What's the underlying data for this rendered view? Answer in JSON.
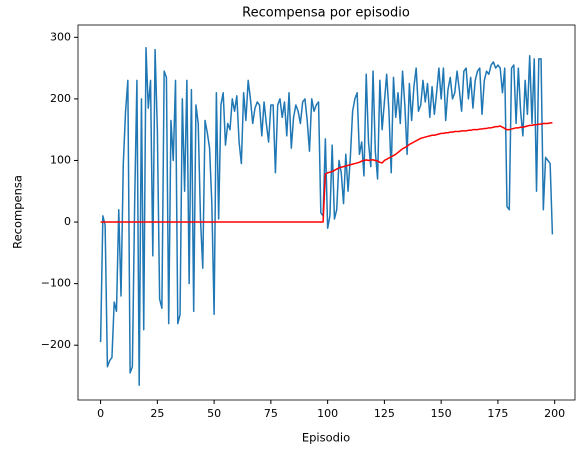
{
  "chart_data": {
    "type": "line",
    "title": "Recompensa por episodio",
    "x_label": "Episodio",
    "y_label": "Recompensa",
    "x": [
      0,
      1,
      2,
      3,
      4,
      5,
      6,
      7,
      8,
      9,
      10,
      11,
      12,
      13,
      14,
      15,
      16,
      17,
      18,
      19,
      20,
      21,
      22,
      23,
      24,
      25,
      26,
      27,
      28,
      29,
      30,
      31,
      32,
      33,
      34,
      35,
      36,
      37,
      38,
      39,
      40,
      41,
      42,
      43,
      44,
      45,
      46,
      47,
      48,
      49,
      50,
      51,
      52,
      53,
      54,
      55,
      56,
      57,
      58,
      59,
      60,
      61,
      62,
      63,
      64,
      65,
      66,
      67,
      68,
      69,
      70,
      71,
      72,
      73,
      74,
      75,
      76,
      77,
      78,
      79,
      80,
      81,
      82,
      83,
      84,
      85,
      86,
      87,
      88,
      89,
      90,
      91,
      92,
      93,
      94,
      95,
      96,
      97,
      98,
      99,
      100,
      101,
      102,
      103,
      104,
      105,
      106,
      107,
      108,
      109,
      110,
      111,
      112,
      113,
      114,
      115,
      116,
      117,
      118,
      119,
      120,
      121,
      122,
      123,
      124,
      125,
      126,
      127,
      128,
      129,
      130,
      131,
      132,
      133,
      134,
      135,
      136,
      137,
      138,
      139,
      140,
      141,
      142,
      143,
      144,
      145,
      146,
      147,
      148,
      149,
      150,
      151,
      152,
      153,
      154,
      155,
      156,
      157,
      158,
      159,
      160,
      161,
      162,
      163,
      164,
      165,
      166,
      167,
      168,
      169,
      170,
      171,
      172,
      173,
      174,
      175,
      176,
      177,
      178,
      179,
      180,
      181,
      182,
      183,
      184,
      185,
      186,
      187,
      188,
      189,
      190,
      191,
      192,
      193,
      194,
      195,
      196,
      197,
      198,
      199
    ],
    "series": [
      {
        "color": "#1f77b4",
        "values": [
          -195,
          10,
          -5,
          -235,
          -225,
          -220,
          -130,
          -145,
          20,
          -120,
          95,
          180,
          230,
          -245,
          -235,
          30,
          230,
          -265,
          200,
          -175,
          283,
          185,
          230,
          -55,
          280,
          150,
          -125,
          -140,
          245,
          235,
          -165,
          165,
          100,
          230,
          -165,
          -150,
          200,
          50,
          230,
          -100,
          215,
          -145,
          190,
          160,
          5,
          -75,
          165,
          145,
          120,
          30,
          -150,
          210,
          5,
          190,
          210,
          125,
          160,
          150,
          200,
          180,
          205,
          130,
          95,
          210,
          165,
          230,
          200,
          160,
          185,
          195,
          190,
          140,
          195,
          160,
          130,
          190,
          190,
          80,
          190,
          200,
          170,
          195,
          140,
          210,
          120,
          170,
          190,
          180,
          160,
          195,
          200,
          165,
          115,
          200,
          180,
          190,
          195,
          15,
          10,
          135,
          -10,
          10,
          125,
          5,
          20,
          100,
          80,
          30,
          110,
          50,
          105,
          180,
          200,
          210,
          110,
          130,
          75,
          240,
          130,
          90,
          245,
          115,
          70,
          230,
          150,
          195,
          240,
          180,
          80,
          235,
          170,
          210,
          160,
          245,
          190,
          110,
          225,
          165,
          220,
          250,
          180,
          190,
          230,
          195,
          225,
          170,
          220,
          175,
          210,
          250,
          200,
          250,
          165,
          215,
          235,
          200,
          210,
          245,
          215,
          180,
          245,
          250,
          200,
          235,
          185,
          230,
          245,
          250,
          175,
          230,
          245,
          240,
          255,
          260,
          250,
          255,
          250,
          210,
          250,
          25,
          20,
          250,
          255,
          160,
          250,
          180,
          140,
          230,
          175,
          270,
          160,
          265,
          50,
          265,
          265,
          20,
          105,
          100,
          95,
          -20
        ]
      },
      {
        "color": "#ff0000",
        "values": [
          0,
          0,
          0,
          0,
          0,
          0,
          0,
          0,
          0,
          0,
          0,
          0,
          0,
          0,
          0,
          0,
          0,
          0,
          0,
          0,
          0,
          0,
          0,
          0,
          0,
          0,
          0,
          0,
          0,
          0,
          0,
          0,
          0,
          0,
          0,
          0,
          0,
          0,
          0,
          0,
          0,
          0,
          0,
          0,
          0,
          0,
          0,
          0,
          0,
          0,
          0,
          0,
          0,
          0,
          0,
          0,
          0,
          0,
          0,
          0,
          0,
          0,
          0,
          0,
          0,
          0,
          0,
          0,
          0,
          0,
          0,
          0,
          0,
          0,
          0,
          0,
          0,
          0,
          0,
          0,
          0,
          0,
          0,
          0,
          0,
          0,
          0,
          0,
          0,
          0,
          0,
          0,
          0,
          0,
          0,
          0,
          0,
          0,
          0,
          78,
          80,
          81,
          82,
          84,
          86,
          88,
          89,
          90,
          91,
          92,
          93,
          94,
          95,
          96,
          97,
          99,
          100,
          101,
          100,
          101,
          101,
          100,
          99,
          97,
          96,
          100,
          102,
          104,
          106,
          108,
          110,
          113,
          116,
          119,
          121,
          123,
          126,
          128,
          130,
          132,
          134,
          136,
          137,
          138,
          139,
          140,
          141,
          141,
          142,
          143,
          144,
          144,
          145,
          145,
          146,
          146,
          147,
          147,
          147,
          148,
          148,
          148,
          149,
          149,
          150,
          150,
          150,
          151,
          151,
          152,
          152,
          153,
          153,
          154,
          155,
          155,
          156,
          154,
          152,
          150,
          150,
          151,
          152,
          153,
          153,
          154,
          154,
          155,
          156,
          157,
          157,
          158,
          158,
          159,
          159,
          160,
          160,
          160,
          161,
          161
        ]
      }
    ],
    "xlim": [
      -9.95,
      208.95
    ],
    "ylim": [
      -289,
      320
    ],
    "xticks": [
      0,
      25,
      50,
      75,
      100,
      125,
      150,
      175,
      200
    ],
    "yticks": [
      {
        "value": -200,
        "label": "−200"
      },
      {
        "value": -100,
        "label": "−100"
      },
      0,
      100,
      200,
      300
    ]
  }
}
